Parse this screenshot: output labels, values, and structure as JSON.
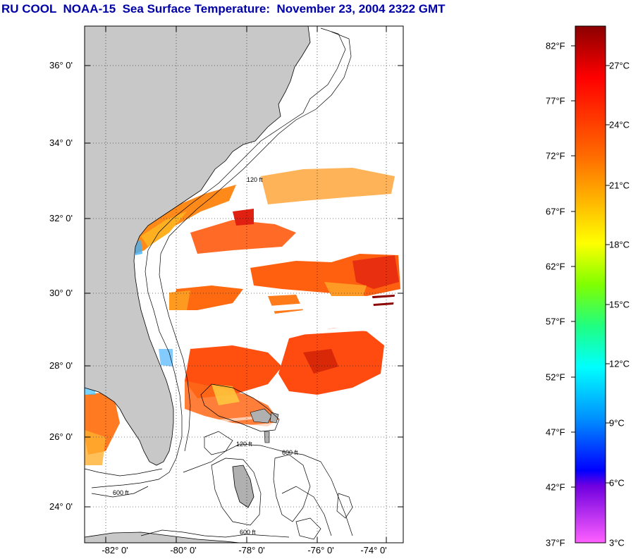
{
  "title": "RU COOL  NOAA-15  Sea Surface Temperature:  November 23, 2004 2322 GMT",
  "map": {
    "lat_labels": [
      "36° 0'",
      "34° 0'",
      "32° 0'",
      "30° 0'",
      "28° 0'",
      "26° 0'",
      "24° 0'"
    ],
    "lon_labels": [
      "-82° 0'",
      "-80° 0'",
      "-78° 0'",
      "-76° 0'",
      "-74° 0'"
    ],
    "isobath_labels": [
      "120 ft",
      "600 ft"
    ],
    "land_color": "#c8c8c8",
    "ocean_color": "#ffffff"
  },
  "colorbar": {
    "fahrenheit": [
      "82°F",
      "77°F",
      "72°F",
      "67°F",
      "62°F",
      "57°F",
      "52°F",
      "47°F",
      "42°F",
      "37°F"
    ],
    "celsius": [
      "27°C",
      "24°C",
      "21°C",
      "18°C",
      "15°C",
      "12°C",
      "9°C",
      "6°C",
      "3°C"
    ],
    "colors_top_to_bottom": [
      "#900000",
      "#ff0000",
      "#ff8000",
      "#ffff00",
      "#80ff00",
      "#00ff80",
      "#00ffff",
      "#0080ff",
      "#0000ff",
      "#8000ff",
      "#ff40ff"
    ]
  }
}
